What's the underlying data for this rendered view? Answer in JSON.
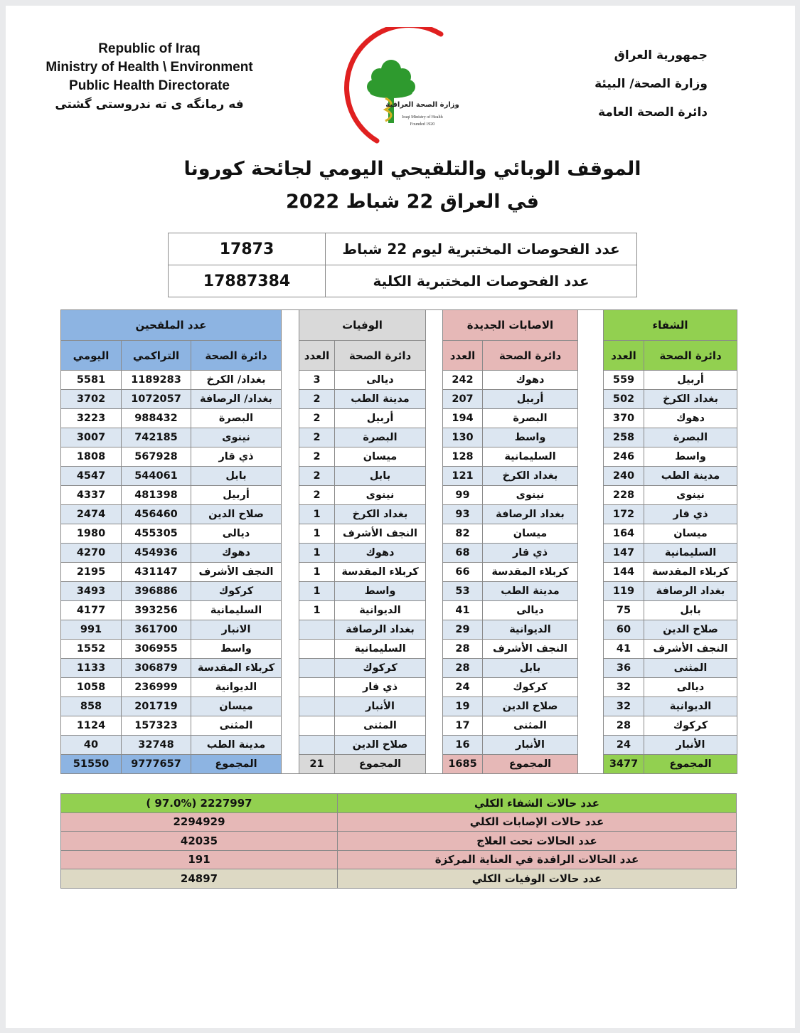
{
  "header": {
    "english": [
      "Republic of Iraq",
      "Ministry of Health \\ Environment",
      "Public Health Directorate"
    ],
    "kurdish": "فه رمانگه ی ته ندروستی گشتی",
    "arabic": [
      "جمهورية العراق",
      "وزارة الصحة/ البيئة",
      "دائرة الصحة العامة"
    ],
    "logo_text": [
      "وزارة الصحة العراقية",
      "Iraqi Ministry of Health",
      "Founded 1920"
    ]
  },
  "title": {
    "line1": "الموقف الوبائي والتلقيحي اليومي لجائحة كورونا",
    "line2": "في العراق  22  شباط 2022"
  },
  "tests": [
    {
      "label": "عدد الفحوصات المختبرية  ليوم  22   شباط",
      "value": "17873"
    },
    {
      "label": "عدد الفحوصات المختبرية الكلية",
      "value": "17887384"
    }
  ],
  "colors": {
    "vaccinated": "#8db4e2",
    "deaths": "#d9d9d9",
    "cases": "#e6b8b7",
    "recovered": "#92d050",
    "row_alt": "#dce6f1",
    "total_deaths": "#ddd9c4"
  },
  "main": {
    "vaccinated": {
      "title": "عدد الملقحين",
      "col_dept": "دائرة الصحة",
      "col_cumulative": "التراكمي",
      "col_daily": "اليومي",
      "rows": [
        {
          "dept": "بغداد/ الكرخ",
          "cumulative": "1189283",
          "daily": "5581"
        },
        {
          "dept": "بغداد/ الرصافة",
          "cumulative": "1072057",
          "daily": "3702"
        },
        {
          "dept": "البصرة",
          "cumulative": "988432",
          "daily": "3223"
        },
        {
          "dept": "نينوى",
          "cumulative": "742185",
          "daily": "3007"
        },
        {
          "dept": "ذي قار",
          "cumulative": "567928",
          "daily": "1808"
        },
        {
          "dept": "بابل",
          "cumulative": "544061",
          "daily": "4547"
        },
        {
          "dept": "أربيل",
          "cumulative": "481398",
          "daily": "4337"
        },
        {
          "dept": "صلاح الدين",
          "cumulative": "456460",
          "daily": "2474"
        },
        {
          "dept": "ديالى",
          "cumulative": "455305",
          "daily": "1980"
        },
        {
          "dept": "دهوك",
          "cumulative": "454936",
          "daily": "4270"
        },
        {
          "dept": "النجف الأشرف",
          "cumulative": "431147",
          "daily": "2195"
        },
        {
          "dept": "كركوك",
          "cumulative": "396886",
          "daily": "3493"
        },
        {
          "dept": "السليمانية",
          "cumulative": "393256",
          "daily": "4177"
        },
        {
          "dept": "الانبار",
          "cumulative": "361700",
          "daily": "991"
        },
        {
          "dept": "واسط",
          "cumulative": "306955",
          "daily": "1552"
        },
        {
          "dept": "كربلاء المقدسة",
          "cumulative": "306879",
          "daily": "1133"
        },
        {
          "dept": "الديوانية",
          "cumulative": "236999",
          "daily": "1058"
        },
        {
          "dept": "ميسان",
          "cumulative": "201719",
          "daily": "858"
        },
        {
          "dept": "المثنى",
          "cumulative": "157323",
          "daily": "1124"
        },
        {
          "dept": "مدينة الطب",
          "cumulative": "32748",
          "daily": "40"
        }
      ],
      "total": {
        "dept": "المجموع",
        "cumulative": "9777657",
        "daily": "51550"
      }
    },
    "deaths": {
      "title": "الوفيات",
      "col_dept": "دائرة الصحة",
      "col_count": "العدد",
      "rows": [
        {
          "dept": "ديالى",
          "count": "3"
        },
        {
          "dept": "مدينة الطب",
          "count": "2"
        },
        {
          "dept": "أربيل",
          "count": "2"
        },
        {
          "dept": "البصرة",
          "count": "2"
        },
        {
          "dept": "ميسان",
          "count": "2"
        },
        {
          "dept": "بابل",
          "count": "2"
        },
        {
          "dept": "نينوى",
          "count": "2"
        },
        {
          "dept": "بغداد الكرخ",
          "count": "1"
        },
        {
          "dept": "النجف الأشرف",
          "count": "1"
        },
        {
          "dept": "دهوك",
          "count": "1"
        },
        {
          "dept": "كربلاء المقدسة",
          "count": "1"
        },
        {
          "dept": "واسط",
          "count": "1"
        },
        {
          "dept": "الديوانية",
          "count": "1"
        },
        {
          "dept": "بغداد الرصافة",
          "count": ""
        },
        {
          "dept": "السليمانية",
          "count": ""
        },
        {
          "dept": "كركوك",
          "count": ""
        },
        {
          "dept": "ذي قار",
          "count": ""
        },
        {
          "dept": "الأنبار",
          "count": ""
        },
        {
          "dept": "المثنى",
          "count": ""
        },
        {
          "dept": "صلاح الدين",
          "count": ""
        }
      ],
      "total": {
        "dept": "المجموع",
        "count": "21"
      }
    },
    "cases": {
      "title": "الاصابات الجديدة",
      "col_dept": "دائرة الصحة",
      "col_count": "العدد",
      "rows": [
        {
          "dept": "دهوك",
          "count": "242"
        },
        {
          "dept": "أربيل",
          "count": "207"
        },
        {
          "dept": "البصرة",
          "count": "194"
        },
        {
          "dept": "واسط",
          "count": "130"
        },
        {
          "dept": "السليمانية",
          "count": "128"
        },
        {
          "dept": "بغداد الكرخ",
          "count": "121"
        },
        {
          "dept": "نينوى",
          "count": "99"
        },
        {
          "dept": "بغداد الرصافة",
          "count": "93"
        },
        {
          "dept": "ميسان",
          "count": "82"
        },
        {
          "dept": "ذي قار",
          "count": "68"
        },
        {
          "dept": "كربلاء المقدسة",
          "count": "66"
        },
        {
          "dept": "مدينة الطب",
          "count": "53"
        },
        {
          "dept": "ديالى",
          "count": "41"
        },
        {
          "dept": "الديوانية",
          "count": "29"
        },
        {
          "dept": "النجف الأشرف",
          "count": "28"
        },
        {
          "dept": "بابل",
          "count": "28"
        },
        {
          "dept": "كركوك",
          "count": "24"
        },
        {
          "dept": "صلاح الدين",
          "count": "19"
        },
        {
          "dept": "المثنى",
          "count": "17"
        },
        {
          "dept": "الأنبار",
          "count": "16"
        }
      ],
      "total": {
        "dept": "المجموع",
        "count": "1685"
      }
    },
    "recovered": {
      "title": "الشفاء",
      "col_dept": "دائرة الصحة",
      "col_count": "العدد",
      "rows": [
        {
          "dept": "أربيل",
          "count": "559"
        },
        {
          "dept": "بغداد الكرخ",
          "count": "502"
        },
        {
          "dept": "دهوك",
          "count": "370"
        },
        {
          "dept": "البصرة",
          "count": "258"
        },
        {
          "dept": "واسط",
          "count": "246"
        },
        {
          "dept": "مدينة الطب",
          "count": "240"
        },
        {
          "dept": "نينوى",
          "count": "228"
        },
        {
          "dept": "ذي قار",
          "count": "172"
        },
        {
          "dept": "ميسان",
          "count": "164"
        },
        {
          "dept": "السليمانية",
          "count": "147"
        },
        {
          "dept": "كربلاء المقدسة",
          "count": "144"
        },
        {
          "dept": "بغداد الرصافة",
          "count": "119"
        },
        {
          "dept": "بابل",
          "count": "75"
        },
        {
          "dept": "صلاح الدين",
          "count": "60"
        },
        {
          "dept": "النجف الأشرف",
          "count": "41"
        },
        {
          "dept": "المثنى",
          "count": "36"
        },
        {
          "dept": "ديالى",
          "count": "32"
        },
        {
          "dept": "الديوانية",
          "count": "32"
        },
        {
          "dept": "كركوك",
          "count": "28"
        },
        {
          "dept": "الأنبار",
          "count": "24"
        }
      ],
      "total": {
        "dept": "المجموع",
        "count": "3477"
      }
    }
  },
  "summary": [
    {
      "label": "عدد حالات الشفاء الكلي",
      "value": "( 97.0%)  2227997",
      "color": "green"
    },
    {
      "label": "عدد حالات الإصابات الكلي",
      "value": "2294929",
      "color": "pink"
    },
    {
      "label": "عدد الحالات تحت العلاج",
      "value": "42035",
      "color": "pink"
    },
    {
      "label": "عدد الحالات الراقدة في العناية المركزة",
      "value": "191",
      "color": "pink"
    },
    {
      "label": "عدد حالات الوفيات الكلي",
      "value": "24897",
      "color": "beige"
    }
  ]
}
